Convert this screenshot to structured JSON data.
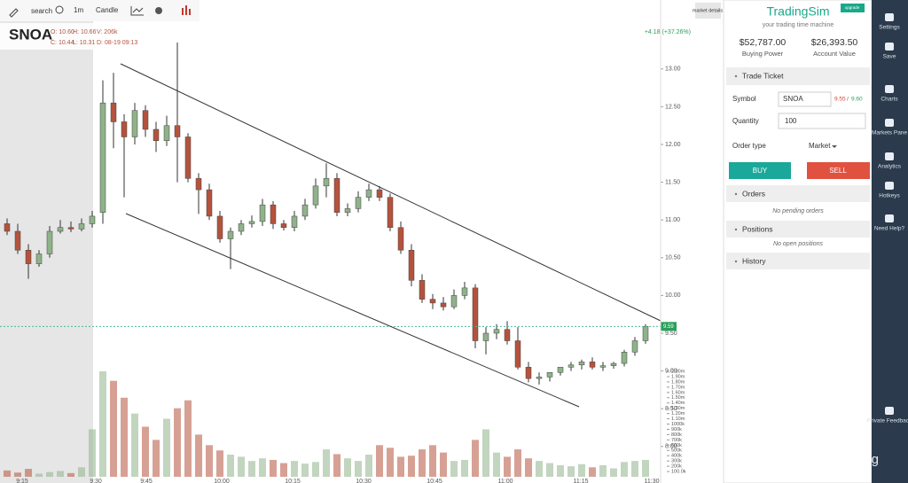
{
  "toolbar": {
    "search": "search",
    "interval": "1m",
    "style": "Candle"
  },
  "symbol": "SNOA",
  "ohlc": {
    "o": "O: 10.60",
    "h": "H: 10.66",
    "v": "V: 206k",
    "c": "C: 10.44",
    "l": "L: 10.31",
    "d": "D: 08-19 09:13"
  },
  "change": "+4.18 (+37.26%)",
  "market_details": "market details",
  "chart_data": {
    "type": "candlestick",
    "open": [
      10.95,
      10.85,
      10.6,
      10.42,
      10.55,
      10.85,
      10.9,
      10.88,
      10.95,
      11.1,
      12.55,
      12.3,
      12.1,
      12.45,
      12.2,
      12.05,
      12.25,
      12.1,
      11.55,
      11.4,
      11.05,
      10.75,
      10.85,
      10.95,
      10.98,
      11.2,
      10.95,
      10.9,
      11.05,
      11.2,
      11.45,
      11.55,
      11.1,
      11.15,
      11.3,
      11.4,
      11.3,
      10.9,
      10.6,
      10.2,
      9.95,
      9.9,
      9.85,
      10.0,
      10.1,
      9.4,
      9.5,
      9.55,
      9.4,
      9.05,
      8.9,
      8.92,
      8.98,
      9.05,
      9.08,
      9.12,
      9.05,
      9.07,
      9.1,
      9.25,
      9.4
    ],
    "high": [
      11.02,
      10.95,
      10.68,
      10.6,
      10.92,
      11.0,
      10.98,
      11.02,
      11.12,
      12.85,
      12.95,
      12.4,
      12.55,
      12.52,
      12.3,
      12.38,
      13.35,
      12.15,
      11.62,
      11.48,
      11.12,
      10.9,
      11.0,
      11.06,
      11.28,
      11.25,
      11.0,
      11.12,
      11.28,
      11.55,
      11.75,
      11.62,
      11.22,
      11.38,
      11.48,
      11.45,
      11.35,
      10.98,
      10.68,
      10.28,
      10.02,
      9.98,
      10.08,
      10.18,
      10.15,
      9.58,
      9.62,
      9.66,
      9.58,
      9.12,
      8.98,
      8.98,
      9.05,
      9.12,
      9.15,
      9.18,
      9.12,
      9.12,
      9.28,
      9.45,
      9.62
    ],
    "low": [
      10.8,
      10.55,
      10.22,
      10.38,
      10.5,
      10.82,
      10.84,
      10.85,
      10.9,
      10.95,
      11.95,
      11.3,
      12.0,
      12.1,
      11.9,
      11.98,
      11.5,
      11.5,
      11.08,
      11.0,
      10.7,
      10.35,
      10.8,
      10.9,
      10.92,
      10.88,
      10.86,
      10.85,
      11.0,
      11.15,
      11.3,
      11.05,
      11.05,
      11.1,
      11.25,
      11.25,
      10.85,
      10.55,
      10.12,
      9.9,
      9.82,
      9.8,
      9.82,
      9.95,
      9.3,
      9.22,
      9.42,
      9.35,
      9.02,
      8.85,
      8.82,
      8.86,
      8.94,
      9.0,
      9.02,
      9.02,
      9.0,
      9.03,
      9.06,
      9.2,
      9.36
    ],
    "close": [
      10.85,
      10.6,
      10.42,
      10.55,
      10.85,
      10.9,
      10.88,
      10.95,
      11.05,
      12.55,
      12.3,
      12.1,
      12.45,
      12.2,
      12.05,
      12.25,
      12.1,
      11.55,
      11.4,
      11.05,
      10.75,
      10.85,
      10.95,
      10.98,
      11.2,
      10.95,
      10.9,
      11.05,
      11.2,
      11.45,
      11.55,
      11.1,
      11.15,
      11.3,
      11.4,
      11.3,
      10.9,
      10.6,
      10.2,
      9.95,
      9.9,
      9.85,
      10.0,
      10.1,
      9.4,
      9.5,
      9.55,
      9.4,
      9.05,
      8.9,
      8.92,
      8.98,
      9.05,
      9.08,
      9.12,
      9.05,
      9.07,
      9.1,
      9.25,
      9.4,
      9.59
    ],
    "volume": [
      120000,
      80000,
      150000,
      60000,
      90000,
      110000,
      70000,
      180000,
      900000,
      2000000,
      1820000,
      1500000,
      1200000,
      950000,
      700000,
      1100000,
      1300000,
      1450000,
      800000,
      600000,
      500000,
      420000,
      380000,
      300000,
      350000,
      320000,
      260000,
      300000,
      250000,
      280000,
      520000,
      430000,
      350000,
      300000,
      420000,
      600000,
      550000,
      380000,
      400000,
      520000,
      600000,
      460000,
      300000,
      320000,
      700000,
      900000,
      460000,
      380000,
      520000,
      350000,
      300000,
      260000,
      220000,
      200000,
      240000,
      180000,
      220000,
      160000,
      280000,
      300000,
      320000
    ],
    "up_color": "#8fb28a",
    "down_color": "#b4533c",
    "ylim": [
      7.61,
      13.62
    ],
    "yticks": [
      {
        "value": 13,
        "label": "13.00"
      },
      {
        "value": 12.5,
        "label": "12.50"
      },
      {
        "value": 12,
        "label": "12.00"
      },
      {
        "value": 11.5,
        "label": "11.50"
      },
      {
        "value": 11,
        "label": "11.00"
      },
      {
        "value": 10.5,
        "label": "10.50"
      },
      {
        "value": 10,
        "label": "10.00"
      },
      {
        "value": 9.5,
        "label": "9.50"
      },
      {
        "value": 9,
        "label": "9.00"
      },
      {
        "value": 8.5,
        "label": "8.50"
      },
      {
        "value": 8,
        "label": "8.00"
      }
    ],
    "volume_lim": [
      0,
      2000000
    ],
    "volume_ticks": [
      {
        "value": 2000000,
        "label": "2.00m"
      },
      {
        "value": 1900000,
        "label": "1.90m"
      },
      {
        "value": 1800000,
        "label": "1.80m"
      },
      {
        "value": 1700000,
        "label": "1.70m"
      },
      {
        "value": 1600000,
        "label": "1.60m"
      },
      {
        "value": 1500000,
        "label": "1.50m"
      },
      {
        "value": 1400000,
        "label": "1.40m"
      },
      {
        "value": 1300000,
        "label": "1.30m"
      },
      {
        "value": 1200000,
        "label": "1.20m"
      },
      {
        "value": 1100000,
        "label": "1.10m"
      },
      {
        "value": 1000000,
        "label": "1000k"
      },
      {
        "value": 900000,
        "label": "900k"
      },
      {
        "value": 800000,
        "label": "800k"
      },
      {
        "value": 700000,
        "label": "700k"
      },
      {
        "value": 600000,
        "label": "600k"
      },
      {
        "value": 500000,
        "label": "500k"
      },
      {
        "value": 400000,
        "label": "400k"
      },
      {
        "value": 300000,
        "label": "300k"
      },
      {
        "value": 200000,
        "label": "200k"
      },
      {
        "value": 100000,
        "label": "100.0k"
      }
    ],
    "time_labels": [
      "9:15",
      "9:30",
      "9:45",
      "10:00",
      "10:15",
      "10:30",
      "10:45",
      "11:00",
      "11:15",
      "11:30"
    ]
  },
  "panel": {
    "brand": "TradingSim",
    "badge": "upgrade",
    "tagline": "your trading time machine",
    "buying_power": "$52,787.00",
    "buying_power_label": "Buying Power",
    "account_value": "$26,393.50",
    "account_value_label": "Account Value",
    "trade_ticket": "Trade Ticket",
    "symbol_label": "Symbol",
    "symbol": "SNOA",
    "bid": "9.55",
    "sep": "/",
    "ask": "9.60",
    "quantity_label": "Quantity",
    "quantity": "100",
    "order_type_label": "Order type",
    "order_type": "Market",
    "buy": "BUY",
    "sell": "SELL",
    "orders": "Orders",
    "no_orders": "No pending orders",
    "positions": "Positions",
    "no_positions": "No open positions",
    "history": "History"
  },
  "nav": [
    "Settings",
    "Save",
    "Charts",
    "Markets Pane",
    "Analytics",
    "Hotkeys",
    "Need Help?",
    "Private Feedback"
  ],
  "watermark": "@ 加密Ming"
}
